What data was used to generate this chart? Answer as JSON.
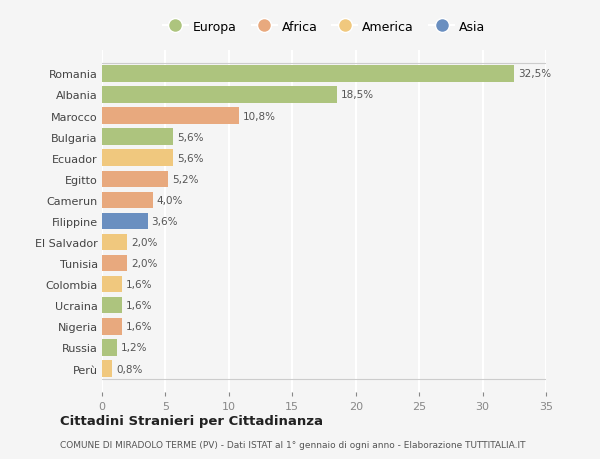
{
  "categories": [
    "Romania",
    "Albania",
    "Marocco",
    "Bulgaria",
    "Ecuador",
    "Egitto",
    "Camerun",
    "Filippine",
    "El Salvador",
    "Tunisia",
    "Colombia",
    "Ucraina",
    "Nigeria",
    "Russia",
    "Perù"
  ],
  "values": [
    32.5,
    18.5,
    10.8,
    5.6,
    5.6,
    5.2,
    4.0,
    3.6,
    2.0,
    2.0,
    1.6,
    1.6,
    1.6,
    1.2,
    0.8
  ],
  "labels": [
    "32,5%",
    "18,5%",
    "10,8%",
    "5,6%",
    "5,6%",
    "5,2%",
    "4,0%",
    "3,6%",
    "2,0%",
    "2,0%",
    "1,6%",
    "1,6%",
    "1,6%",
    "1,2%",
    "0,8%"
  ],
  "colors": [
    "#adc47e",
    "#adc47e",
    "#e8a97e",
    "#adc47e",
    "#f0c87e",
    "#e8a97e",
    "#e8a97e",
    "#6a8fc0",
    "#f0c87e",
    "#e8a97e",
    "#f0c87e",
    "#adc47e",
    "#e8a97e",
    "#adc47e",
    "#f0c87e"
  ],
  "legend_labels": [
    "Europa",
    "Africa",
    "America",
    "Asia"
  ],
  "legend_colors": [
    "#adc47e",
    "#e8a97e",
    "#f0c87e",
    "#6a8fc0"
  ],
  "title": "Cittadini Stranieri per Cittadinanza",
  "subtitle": "COMUNE DI MIRADOLO TERME (PV) - Dati ISTAT al 1° gennaio di ogni anno - Elaborazione TUTTITALIA.IT",
  "xlim": [
    0,
    35
  ],
  "xticks": [
    0,
    5,
    10,
    15,
    20,
    25,
    30,
    35
  ],
  "background_color": "#f5f5f5",
  "grid_color": "#ffffff",
  "bar_height": 0.78
}
